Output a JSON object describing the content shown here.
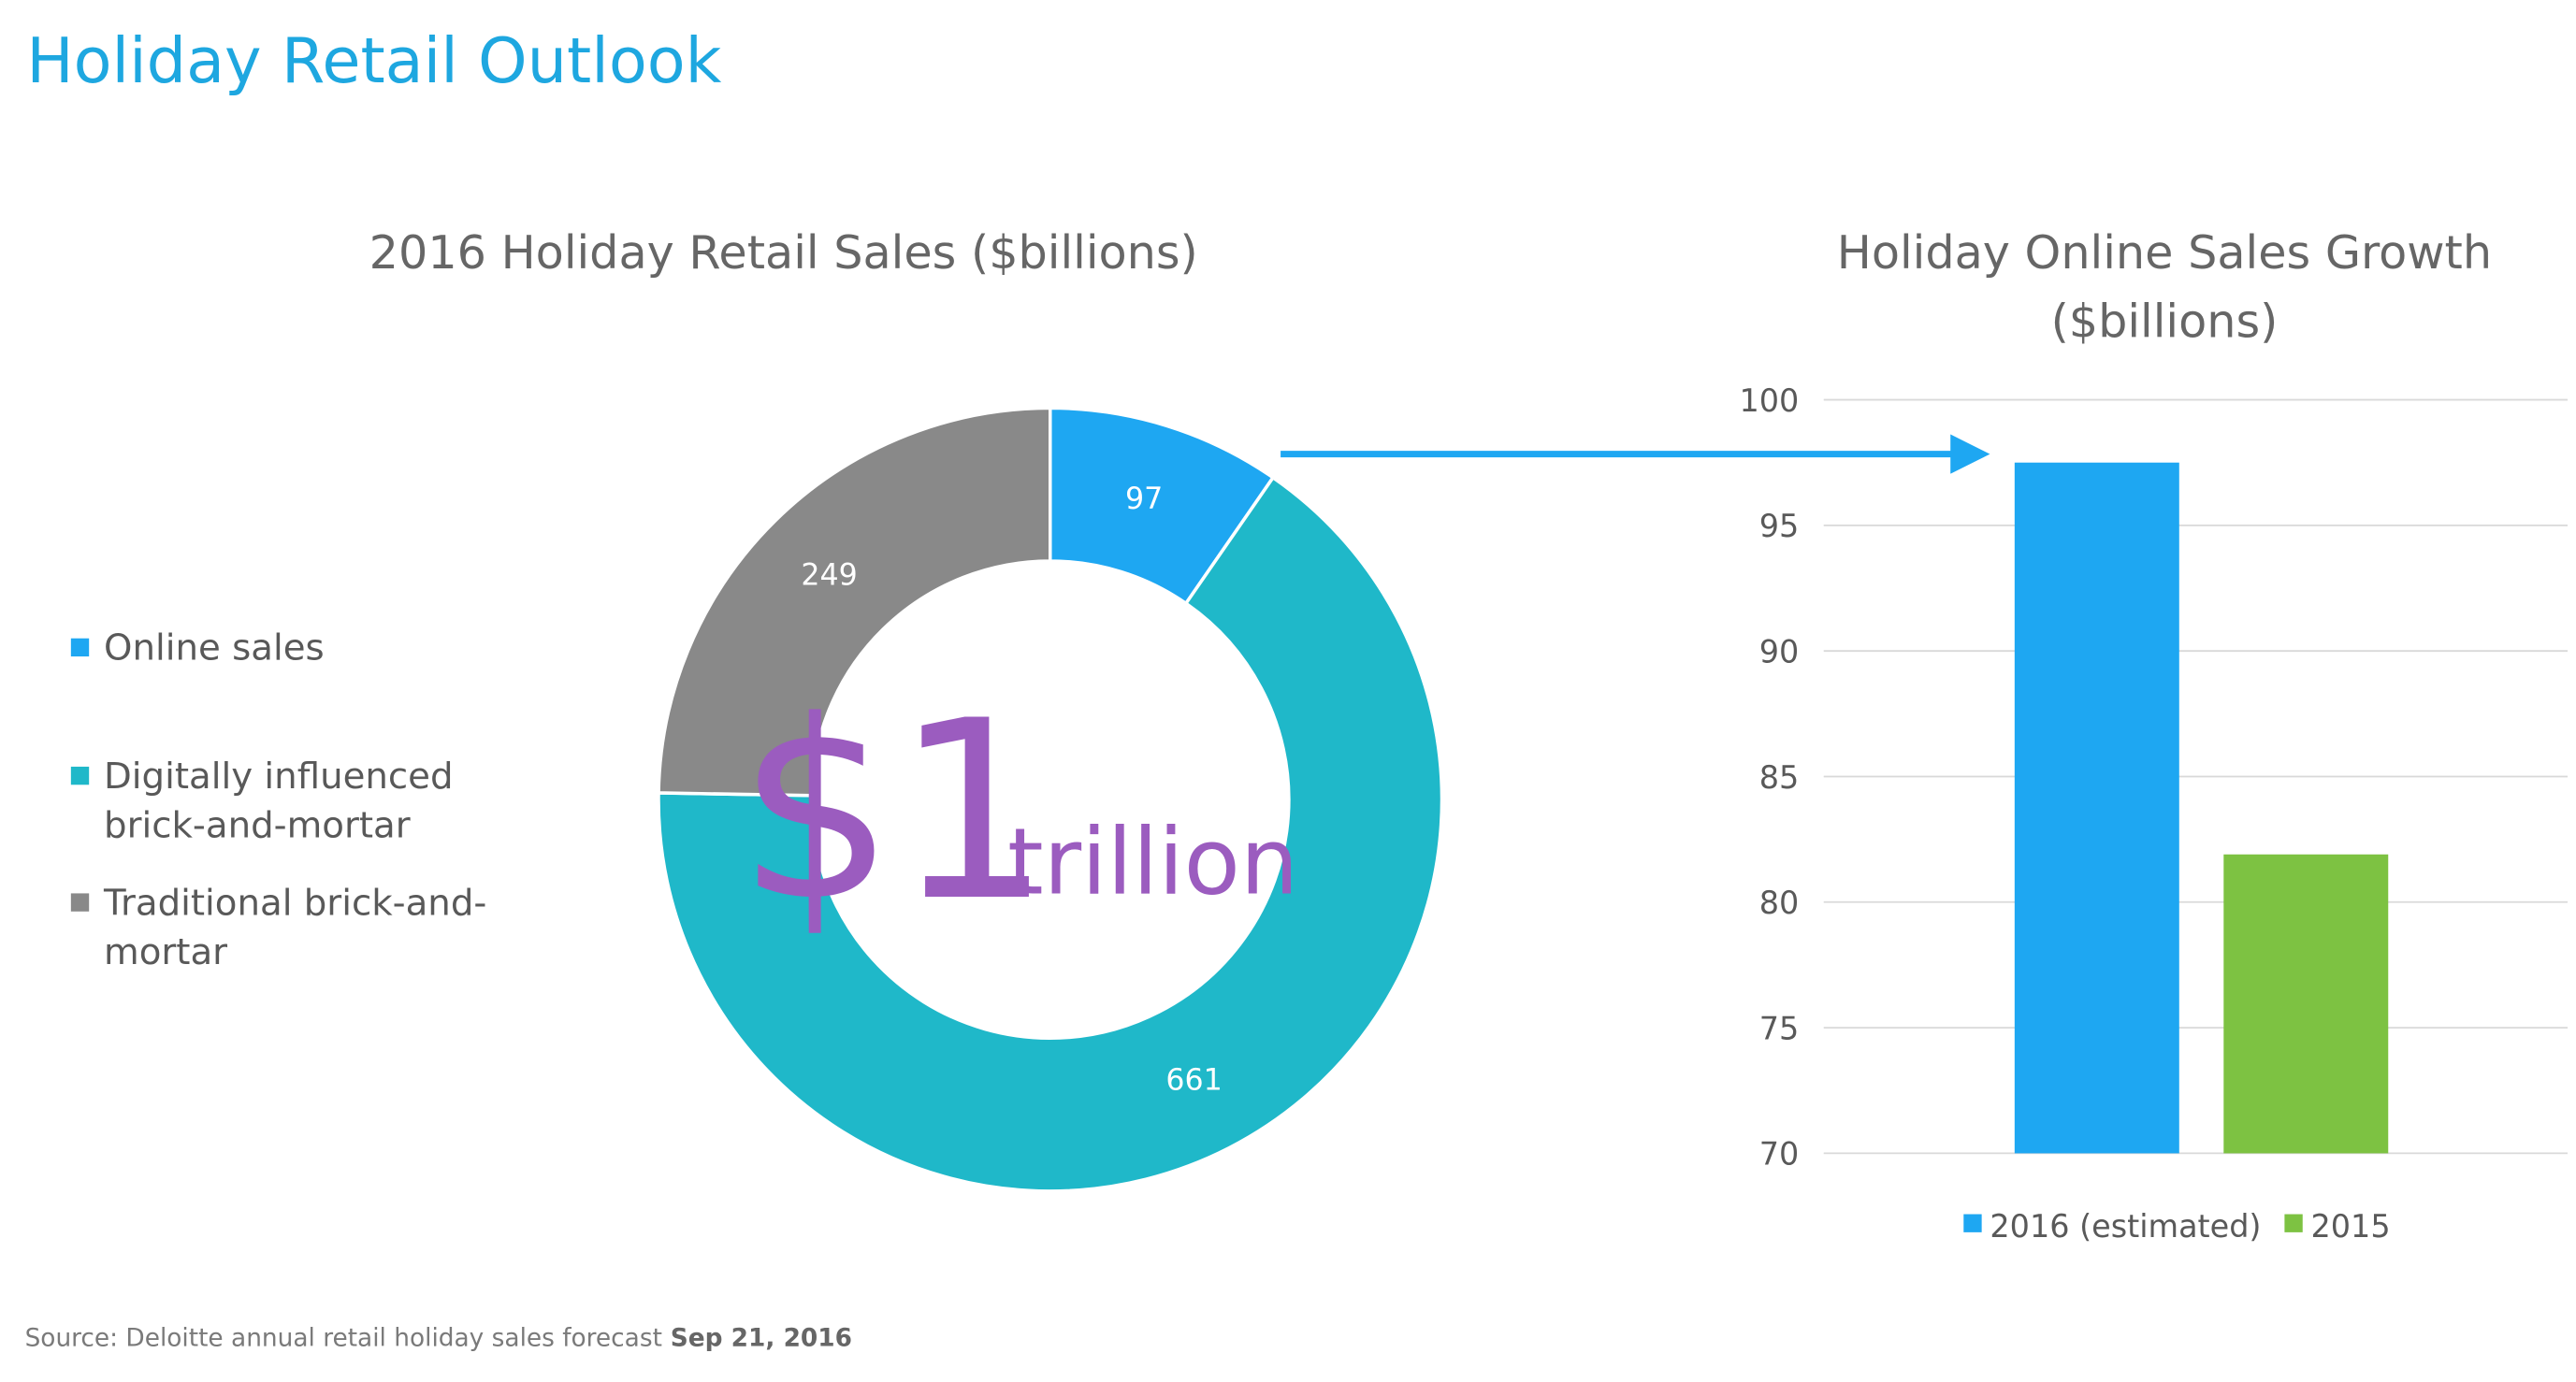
{
  "title": "Holiday Retail Outlook",
  "source": "Source: Deloitte annual retail holiday sales forecast",
  "source_date": "Sep 21, 2016",
  "chart_data": [
    {
      "type": "donut",
      "title": "2016 Holiday Retail Sales ($billions)",
      "categories": [
        "Online sales",
        "Digitally influenced brick-and-mortar",
        "Traditional brick-and-mortar"
      ],
      "values": [
        97,
        661,
        249
      ],
      "colors": [
        "#1ea7f2",
        "#1fb8c9",
        "#898989"
      ],
      "annotations": [
        "$1",
        "trillion"
      ],
      "legend": "left"
    },
    {
      "type": "bar",
      "title": "Holiday Online Sales Growth ($billions)",
      "categories": [
        null
      ],
      "series": [
        {
          "name": "2016 (estimated)",
          "color": "#1ea7f2",
          "values": [
            97.5
          ]
        },
        {
          "name": "2015",
          "color": "#7dc242",
          "values": [
            81.9
          ]
        }
      ],
      "ylim": [
        70,
        100
      ],
      "yticks": [
        70,
        75,
        80,
        85,
        90,
        95,
        100
      ],
      "grid": true,
      "legend": "bottom"
    }
  ]
}
